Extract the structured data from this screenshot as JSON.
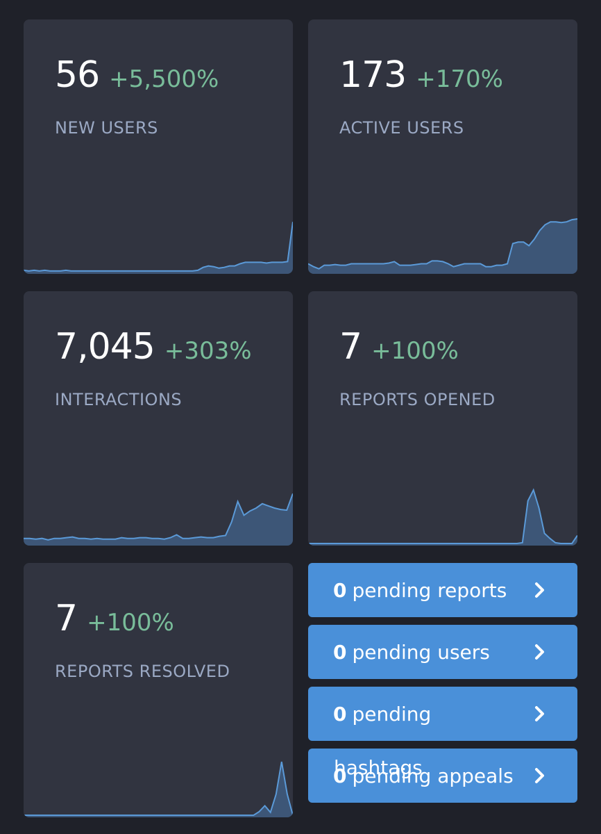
{
  "metrics": [
    {
      "id": "new_users",
      "value": "56",
      "delta": "+5,500%",
      "label": "NEW USERS",
      "series": [
        3,
        2,
        3,
        2,
        3,
        2,
        2,
        2,
        3,
        2,
        2,
        2,
        2,
        2,
        2,
        2,
        2,
        2,
        2,
        2,
        2,
        2,
        2,
        2,
        2,
        2,
        2,
        2,
        2,
        2,
        2,
        2,
        2,
        3,
        7,
        9,
        8,
        6,
        7,
        9,
        9,
        12,
        14,
        14,
        14,
        14,
        13,
        14,
        14,
        14,
        15,
        70
      ]
    },
    {
      "id": "active_users",
      "value": "173",
      "delta": "+170%",
      "label": "ACTIVE USERS",
      "series": [
        12,
        8,
        5,
        10,
        10,
        11,
        10,
        10,
        12,
        12,
        12,
        12,
        12,
        12,
        12,
        13,
        15,
        10,
        10,
        10,
        11,
        12,
        12,
        16,
        16,
        15,
        12,
        8,
        10,
        12,
        12,
        12,
        12,
        8,
        8,
        10,
        10,
        12,
        40,
        42,
        42,
        37,
        46,
        58,
        66,
        70,
        70,
        69,
        70,
        73,
        74
      ]
    },
    {
      "id": "interactions",
      "value": "7,045",
      "delta": "+303%",
      "label": "INTERACTIONS",
      "series": [
        8,
        8,
        7,
        8,
        6,
        8,
        8,
        9,
        10,
        8,
        8,
        7,
        8,
        7,
        7,
        7,
        9,
        8,
        8,
        9,
        9,
        8,
        8,
        7,
        9,
        13,
        8,
        8,
        9,
        10,
        9,
        9,
        11,
        12,
        31,
        59,
        40,
        46,
        50,
        56,
        53,
        50,
        48,
        47,
        70
      ]
    },
    {
      "id": "reports_opened",
      "value": "7",
      "delta": "+100%",
      "label": "REPORTS OPENED",
      "series": [
        1,
        1,
        1,
        1,
        1,
        1,
        1,
        1,
        1,
        1,
        1,
        1,
        1,
        1,
        1,
        1,
        1,
        1,
        1,
        1,
        1,
        1,
        1,
        1,
        1,
        1,
        1,
        1,
        1,
        1,
        1,
        1,
        1,
        1,
        1,
        1,
        1,
        1,
        1,
        2,
        60,
        75,
        50,
        15,
        8,
        2,
        1,
        1,
        1,
        12
      ]
    },
    {
      "id": "reports_resolved",
      "value": "7",
      "delta": "+100%",
      "label": "REPORTS RESOLVED",
      "series": [
        1,
        1,
        1,
        1,
        1,
        1,
        1,
        1,
        1,
        1,
        1,
        1,
        1,
        1,
        1,
        1,
        1,
        1,
        1,
        1,
        1,
        1,
        1,
        1,
        1,
        1,
        1,
        1,
        1,
        1,
        1,
        1,
        1,
        1,
        1,
        1,
        1,
        1,
        1,
        1,
        1,
        1,
        6,
        14,
        5,
        30,
        75,
        30,
        1
      ]
    }
  ],
  "pending": [
    {
      "id": "reports",
      "count": "0",
      "text": "pending reports"
    },
    {
      "id": "users",
      "count": "0",
      "text": "pending users"
    },
    {
      "id": "hashtags",
      "count": "0",
      "text": "pending"
    },
    {
      "id": "appeals",
      "count": "0",
      "text": "pending appeals"
    }
  ],
  "overflow_text": "hashtags",
  "colors": {
    "line": "#5b9ad8",
    "fill": "#3d5677",
    "positive": "#79bd9a",
    "button": "#4a90d9"
  }
}
